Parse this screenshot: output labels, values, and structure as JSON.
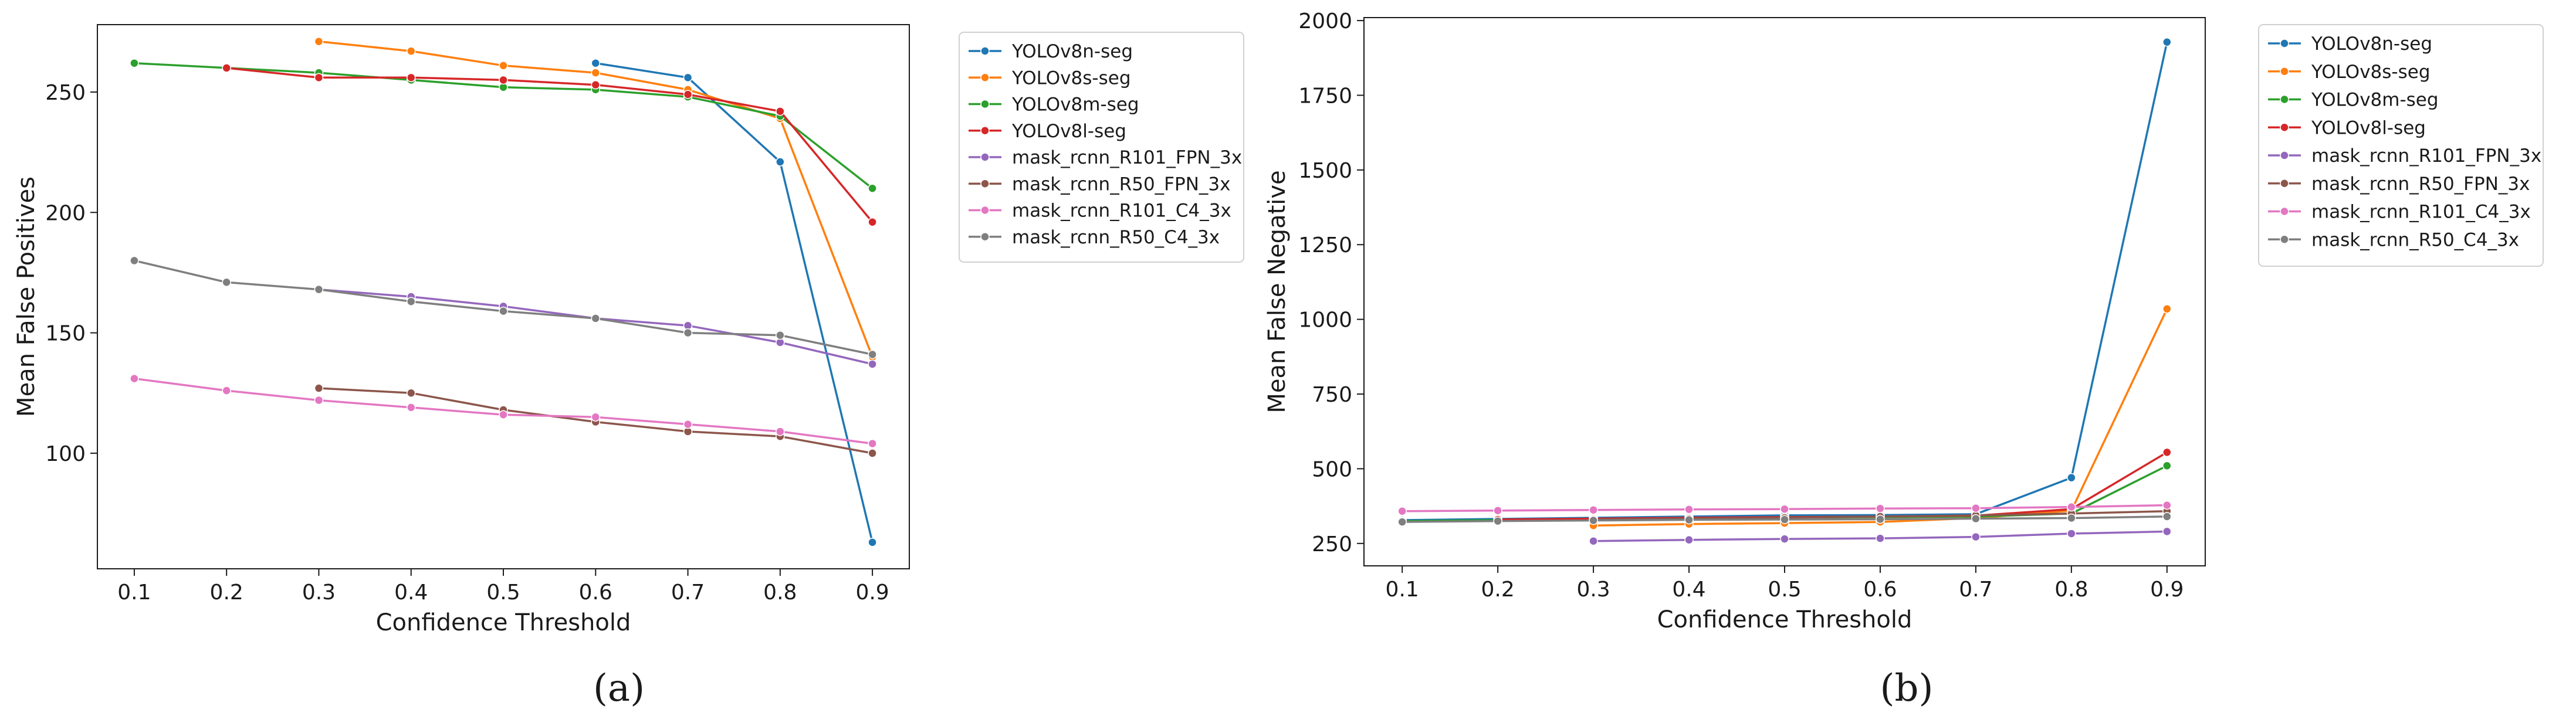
{
  "panel_labels": [
    "(a)",
    "(b)"
  ],
  "chart_data": [
    {
      "type": "line",
      "title": "",
      "panel_label": "(a)",
      "xlabel": "Confidence Threshold",
      "ylabel": "Mean False Positives",
      "xticks": [
        0.1,
        0.2,
        0.3,
        0.4,
        0.5,
        0.6,
        0.7,
        0.8,
        0.9
      ],
      "xtick_labels": [
        "0.1",
        "0.2",
        "0.3",
        "0.4",
        "0.5",
        "0.6",
        "0.7",
        "0.8",
        "0.9"
      ],
      "xlim": [
        0.06,
        0.94
      ],
      "yticks": [
        100,
        150,
        200,
        250
      ],
      "ytick_labels": [
        "100",
        "150",
        "200",
        "250"
      ],
      "ylim": [
        52,
        278
      ],
      "grid": false,
      "legend_position": "outside-right",
      "series": [
        {
          "name": "YOLOv8n-seg",
          "color": "#1f77b4",
          "x": [
            0.6,
            0.7,
            0.8,
            0.9
          ],
          "y": [
            262,
            256,
            221,
            63
          ]
        },
        {
          "name": "YOLOv8s-seg",
          "color": "#ff7f0e",
          "x": [
            0.3,
            0.4,
            0.5,
            0.6,
            0.7,
            0.8,
            0.9
          ],
          "y": [
            271,
            267,
            261,
            258,
            251,
            239,
            140
          ]
        },
        {
          "name": "YOLOv8m-seg",
          "color": "#2ca02c",
          "x": [
            0.1,
            0.2,
            0.3,
            0.4,
            0.5,
            0.6,
            0.7,
            0.8,
            0.9
          ],
          "y": [
            262,
            260,
            258,
            255,
            252,
            251,
            248,
            240,
            210
          ]
        },
        {
          "name": "YOLOv8l-seg",
          "color": "#d62728",
          "x": [
            0.2,
            0.3,
            0.4,
            0.5,
            0.6,
            0.7,
            0.8,
            0.9
          ],
          "y": [
            260,
            256,
            256,
            255,
            253,
            249,
            242,
            196
          ]
        },
        {
          "name": "mask_rcnn_R101_FPN_3x",
          "color": "#9467bd",
          "x": [
            0.3,
            0.4,
            0.5,
            0.6,
            0.7,
            0.8,
            0.9
          ],
          "y": [
            168,
            165,
            161,
            156,
            153,
            146,
            137
          ]
        },
        {
          "name": "mask_rcnn_R50_FPN_3x",
          "color": "#8c564b",
          "x": [
            0.3,
            0.4,
            0.5,
            0.6,
            0.7,
            0.8,
            0.9
          ],
          "y": [
            127,
            125,
            118,
            113,
            109,
            107,
            100
          ]
        },
        {
          "name": "mask_rcnn_R101_C4_3x",
          "color": "#e377c2",
          "x": [
            0.1,
            0.2,
            0.3,
            0.4,
            0.5,
            0.6,
            0.7,
            0.8,
            0.9
          ],
          "y": [
            131,
            126,
            122,
            119,
            116,
            115,
            112,
            109,
            104
          ]
        },
        {
          "name": "mask_rcnn_R50_C4_3x",
          "color": "#7f7f7f",
          "x": [
            0.1,
            0.2,
            0.3,
            0.4,
            0.5,
            0.6,
            0.7,
            0.8,
            0.9
          ],
          "y": [
            180,
            171,
            168,
            163,
            159,
            156,
            150,
            149,
            141
          ]
        }
      ]
    },
    {
      "type": "line",
      "title": "",
      "panel_label": "(b)",
      "xlabel": "Confidence Threshold",
      "ylabel": "Mean False Negative",
      "xticks": [
        0.1,
        0.2,
        0.3,
        0.4,
        0.5,
        0.6,
        0.7,
        0.8,
        0.9
      ],
      "xtick_labels": [
        "0.1",
        "0.2",
        "0.3",
        "0.4",
        "0.5",
        "0.6",
        "0.7",
        "0.8",
        "0.9"
      ],
      "xlim": [
        0.06,
        0.94
      ],
      "yticks": [
        250,
        500,
        750,
        1000,
        1250,
        1500,
        1750,
        2000
      ],
      "ytick_labels": [
        "250",
        "500",
        "750",
        "1000",
        "1250",
        "1500",
        "1750",
        "2000"
      ],
      "ylim": [
        175,
        2010
      ],
      "grid": false,
      "legend_position": "outside-right",
      "series": [
        {
          "name": "YOLOv8n-seg",
          "color": "#1f77b4",
          "x": [
            0.1,
            0.2,
            0.3,
            0.4,
            0.5,
            0.6,
            0.7,
            0.8,
            0.9
          ],
          "y": [
            328,
            332,
            336,
            340,
            344,
            345,
            348,
            470,
            1928
          ]
        },
        {
          "name": "YOLOv8s-seg",
          "color": "#ff7f0e",
          "x": [
            0.3,
            0.4,
            0.5,
            0.6,
            0.7,
            0.8,
            0.9
          ],
          "y": [
            310,
            315,
            318,
            322,
            335,
            360,
            1035
          ]
        },
        {
          "name": "YOLOv8m-seg",
          "color": "#2ca02c",
          "x": [
            0.1,
            0.2,
            0.3,
            0.4,
            0.5,
            0.6,
            0.7,
            0.8,
            0.9
          ],
          "y": [
            325,
            328,
            331,
            334,
            337,
            338,
            340,
            350,
            510
          ]
        },
        {
          "name": "YOLOv8l-seg",
          "color": "#d62728",
          "x": [
            0.2,
            0.3,
            0.4,
            0.5,
            0.6,
            0.7,
            0.8,
            0.9
          ],
          "y": [
            330,
            333,
            336,
            338,
            340,
            343,
            365,
            555
          ]
        },
        {
          "name": "mask_rcnn_R101_FPN_3x",
          "color": "#9467bd",
          "x": [
            0.3,
            0.4,
            0.5,
            0.6,
            0.7,
            0.8,
            0.9
          ],
          "y": [
            258,
            262,
            265,
            267,
            272,
            283,
            290
          ]
        },
        {
          "name": "mask_rcnn_R50_FPN_3x",
          "color": "#8c564b",
          "x": [
            0.3,
            0.4,
            0.5,
            0.6,
            0.7,
            0.8,
            0.9
          ],
          "y": [
            330,
            333,
            336,
            340,
            344,
            350,
            358
          ]
        },
        {
          "name": "mask_rcnn_R101_C4_3x",
          "color": "#e377c2",
          "x": [
            0.1,
            0.2,
            0.3,
            0.4,
            0.5,
            0.6,
            0.7,
            0.8,
            0.9
          ],
          "y": [
            358,
            360,
            362,
            364,
            365,
            367,
            368,
            372,
            378
          ]
        },
        {
          "name": "mask_rcnn_R50_C4_3x",
          "color": "#7f7f7f",
          "x": [
            0.1,
            0.2,
            0.3,
            0.4,
            0.5,
            0.6,
            0.7,
            0.8,
            0.9
          ],
          "y": [
            322,
            325,
            327,
            329,
            330,
            331,
            333,
            335,
            340
          ]
        }
      ]
    }
  ]
}
